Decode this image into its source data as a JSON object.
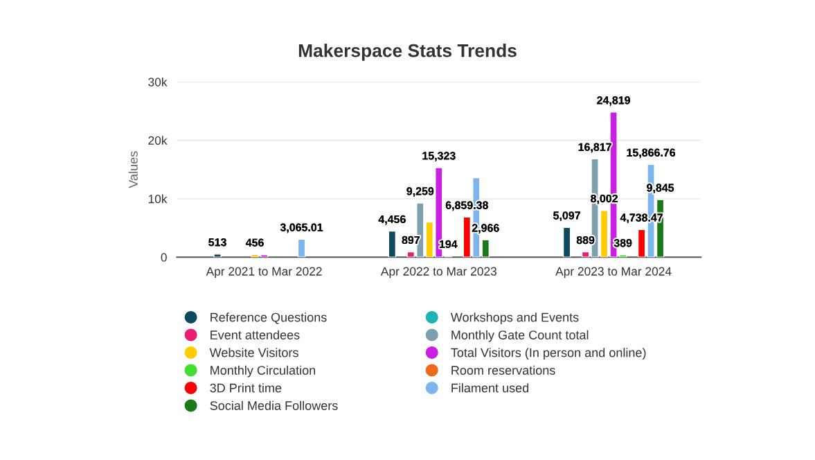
{
  "chart_data": {
    "type": "bar",
    "title": "Makerspace Stats Trends",
    "ylabel": "Values",
    "categories": [
      "Apr 2021 to Mar 2022",
      "Apr 2022 to Mar 2023",
      "Apr 2023 to Mar 2024"
    ],
    "ylim": [
      0,
      30000
    ],
    "yticks": [
      {
        "value": 0,
        "label": "0"
      },
      {
        "value": 10000,
        "label": "10k"
      },
      {
        "value": 20000,
        "label": "20k"
      },
      {
        "value": 30000,
        "label": "30k"
      }
    ],
    "grid": "y",
    "legend": "bottom",
    "series": [
      {
        "name": "Reference Questions",
        "color": "#0d4a5e",
        "values": [
          513,
          4456,
          5097
        ],
        "value_labels": [
          "513",
          "4,456",
          "5,097"
        ]
      },
      {
        "name": "Workshops and Events",
        "color": "#1bb3b3",
        "values": [
          null,
          null,
          null
        ],
        "value_labels": [
          null,
          null,
          null
        ]
      },
      {
        "name": "Event attendees",
        "color": "#e91e73",
        "values": [
          null,
          897,
          889
        ],
        "value_labels": [
          null,
          "897",
          "889"
        ]
      },
      {
        "name": "Monthly Gate Count total",
        "color": "#7f9faf",
        "values": [
          null,
          9259,
          16817
        ],
        "value_labels": [
          null,
          "9,259",
          "16,817"
        ]
      },
      {
        "name": "Website Visitors",
        "color": "#ffcc00",
        "values": [
          456,
          6000,
          8002
        ],
        "value_labels": [
          "456",
          null,
          "8,002"
        ]
      },
      {
        "name": "Total Visitors (In person and online)",
        "color": "#c820e0",
        "values": [
          400,
          15323,
          24819
        ],
        "value_labels": [
          null,
          "15,323",
          "24,819"
        ]
      },
      {
        "name": "Monthly Circulation",
        "color": "#44dd33",
        "values": [
          null,
          194,
          389
        ],
        "value_labels": [
          null,
          "194",
          "389"
        ]
      },
      {
        "name": "Room reservations",
        "color": "#ee6a1a",
        "values": [
          null,
          null,
          null
        ],
        "value_labels": [
          null,
          null,
          null
        ]
      },
      {
        "name": "3D Print time",
        "color": "#ff0000",
        "values": [
          null,
          6859.38,
          4738.47
        ],
        "value_labels": [
          null,
          "6,859.38",
          "4,738.47"
        ]
      },
      {
        "name": "Filament used",
        "color": "#7cb5ec",
        "values": [
          3065.01,
          13600,
          15866.76
        ],
        "value_labels": [
          "3,065.01",
          null,
          "15,866.76"
        ]
      },
      {
        "name": "Social Media Followers",
        "color": "#1a7a1a",
        "values": [
          null,
          2966,
          9845
        ],
        "value_labels": [
          null,
          "2,966",
          "9,845"
        ]
      }
    ]
  }
}
